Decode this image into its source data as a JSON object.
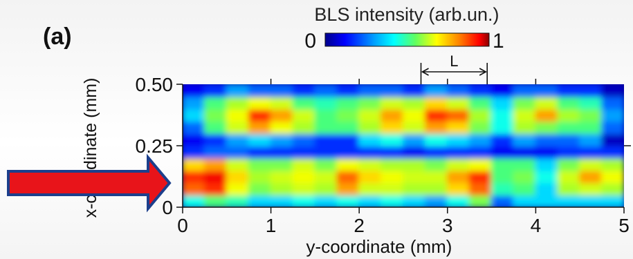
{
  "panel_label": "(a)",
  "colors": {
    "arrow_fill": "#e8141a",
    "arrow_stroke": "#1c3f8c",
    "colormap": [
      "#00008c",
      "#0000ff",
      "#0080ff",
      "#00ffff",
      "#40ff80",
      "#b0ff20",
      "#ffff00",
      "#ff8000",
      "#ff0000",
      "#8c0000"
    ]
  },
  "annotation": {
    "label": "L",
    "y_from": 2.7,
    "y_to": 3.45
  },
  "chart_data": {
    "type": "heatmap",
    "colorbar": {
      "title": "BLS intensity (arb.un.)",
      "min_label": "0",
      "max_label": "1",
      "range": [
        0,
        1
      ]
    },
    "xlabel": "y-coordinate (mm)",
    "ylabel": "x-coordinate (mm)",
    "xlim": [
      0,
      5
    ],
    "ylim": [
      0,
      0.5
    ],
    "xticks": [
      "0",
      "1",
      "2",
      "3",
      "4",
      "5"
    ],
    "yticks": [
      "0",
      "0.25",
      "0.50"
    ],
    "x_tick_values": [
      0,
      1,
      2,
      3,
      4,
      5
    ],
    "y_tick_values": [
      0,
      0.25,
      0.5
    ],
    "y_bins": [
      0.0,
      0.05,
      0.1,
      0.15,
      0.2,
      0.25,
      0.3,
      0.35,
      0.4,
      0.45,
      0.5
    ],
    "x_bins": [
      0.0,
      0.25,
      0.5,
      0.75,
      1.0,
      1.25,
      1.5,
      1.75,
      2.0,
      2.25,
      2.5,
      2.75,
      3.0,
      3.25,
      3.5,
      3.75,
      4.0,
      4.25,
      4.5,
      4.75,
      5.0
    ],
    "z": [
      [
        0.35,
        0.45,
        0.4,
        0.3,
        0.3,
        0.35,
        0.3,
        0.35,
        0.3,
        0.35,
        0.3,
        0.25,
        0.35,
        0.5,
        0.2,
        0.3,
        0.3,
        0.3,
        0.3,
        0.3
      ],
      [
        0.8,
        0.85,
        0.65,
        0.5,
        0.55,
        0.6,
        0.55,
        0.75,
        0.6,
        0.6,
        0.55,
        0.55,
        0.7,
        0.8,
        0.4,
        0.45,
        0.3,
        0.55,
        0.6,
        0.55
      ],
      [
        0.85,
        0.9,
        0.7,
        0.55,
        0.6,
        0.65,
        0.6,
        0.8,
        0.7,
        0.65,
        0.6,
        0.6,
        0.75,
        0.85,
        0.45,
        0.5,
        0.35,
        0.6,
        0.75,
        0.65
      ],
      [
        0.7,
        0.75,
        0.6,
        0.5,
        0.5,
        0.6,
        0.5,
        0.65,
        0.6,
        0.55,
        0.55,
        0.5,
        0.6,
        0.65,
        0.45,
        0.45,
        0.3,
        0.5,
        0.6,
        0.55
      ],
      [
        0.15,
        0.2,
        0.2,
        0.15,
        0.15,
        0.15,
        0.15,
        0.15,
        0.15,
        0.15,
        0.1,
        0.15,
        0.15,
        0.15,
        0.1,
        0.1,
        0.1,
        0.15,
        0.15,
        0.15
      ],
      [
        0.1,
        0.15,
        0.25,
        0.3,
        0.25,
        0.2,
        0.15,
        0.15,
        0.3,
        0.35,
        0.25,
        0.35,
        0.3,
        0.25,
        0.15,
        0.25,
        0.2,
        0.2,
        0.25,
        0.05
      ],
      [
        0.2,
        0.45,
        0.6,
        0.75,
        0.65,
        0.55,
        0.45,
        0.45,
        0.55,
        0.7,
        0.6,
        0.75,
        0.7,
        0.5,
        0.35,
        0.55,
        0.5,
        0.45,
        0.45,
        0.2
      ],
      [
        0.3,
        0.5,
        0.65,
        0.85,
        0.75,
        0.6,
        0.45,
        0.5,
        0.6,
        0.75,
        0.65,
        0.85,
        0.8,
        0.55,
        0.35,
        0.6,
        0.75,
        0.55,
        0.5,
        0.25
      ],
      [
        0.25,
        0.45,
        0.55,
        0.65,
        0.6,
        0.45,
        0.4,
        0.45,
        0.5,
        0.6,
        0.55,
        0.7,
        0.6,
        0.45,
        0.3,
        0.5,
        0.6,
        0.45,
        0.4,
        0.2
      ],
      [
        0.1,
        0.15,
        0.25,
        0.2,
        0.2,
        0.15,
        0.2,
        0.15,
        0.2,
        0.2,
        0.15,
        0.25,
        0.2,
        0.15,
        0.1,
        0.2,
        0.2,
        0.15,
        0.15,
        0.05
      ]
    ]
  }
}
